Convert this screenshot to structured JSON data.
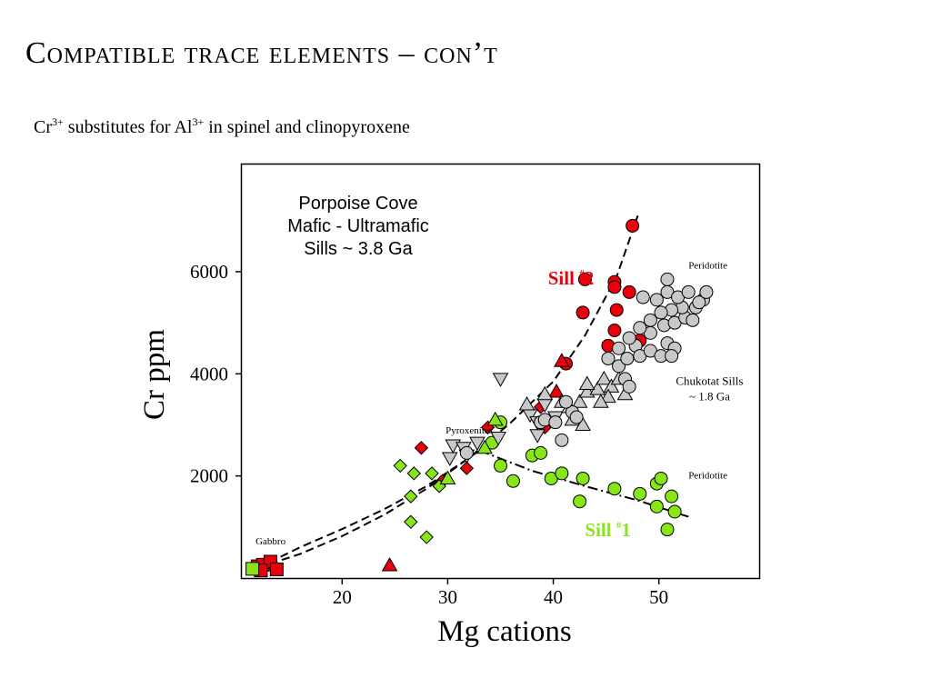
{
  "slide": {
    "title": "Compatible trace elements – con’t",
    "subtitle": {
      "part1": "Cr",
      "sup1": "3+",
      "part2": " substitutes for Al",
      "sup2": "3+",
      "part3": " in spinel and clinopyroxene"
    }
  },
  "chart_data": {
    "type": "scatter",
    "title": [
      "Porpoise Cove",
      "Mafic - Ultramafic",
      "Sills ~ 3.8 Ga"
    ],
    "xlabel": "Mg cations",
    "ylabel": "Cr ppm",
    "xlim": [
      10.5,
      59.5
    ],
    "ylim": [
      0,
      8100
    ],
    "x_ticks": [
      20,
      30,
      40,
      50
    ],
    "y_ticks": [
      2000,
      4000,
      6000
    ],
    "grid": false,
    "legend": "none",
    "colors": {
      "red": "#e8000b",
      "green": "#88e51a",
      "gray": "#c8c8c8",
      "sill1_label": "#88e51a",
      "sill2_label": "#e8000b"
    },
    "annotations": [
      {
        "text": "Sill #2",
        "at": [
          39.5,
          5750
        ],
        "color": "#e8000b",
        "bold": true,
        "size": "large"
      },
      {
        "text": "Sill #1",
        "at": [
          43,
          820
        ],
        "color": "#88e51a",
        "bold": true,
        "size": "large"
      },
      {
        "text": "Peridotite",
        "at": [
          52.8,
          6060
        ],
        "size": "small"
      },
      {
        "text": "Peridotite",
        "at": [
          52.8,
          1950
        ],
        "size": "small"
      },
      {
        "text": "Chukotat Sills",
        "at": [
          54.8,
          3780
        ],
        "size": "medium"
      },
      {
        "text": "~ 1.8 Ga",
        "at": [
          54.8,
          3480
        ],
        "size": "medium"
      },
      {
        "text": "Pyroxenites",
        "at": [
          29.8,
          2830
        ],
        "size": "small"
      },
      {
        "text": "Gabbro",
        "at": [
          11.8,
          660
        ],
        "size": "small"
      }
    ],
    "series": [
      {
        "marker": "circle",
        "color": "red",
        "points": [
          [
            47.5,
            6900
          ],
          [
            43,
            5850
          ],
          [
            45.8,
            5800
          ],
          [
            47.2,
            5600
          ],
          [
            45.8,
            5700
          ],
          [
            46,
            5250
          ],
          [
            42.8,
            5200
          ],
          [
            45.8,
            4850
          ],
          [
            45.2,
            4550
          ],
          [
            48.2,
            4650
          ],
          [
            41.2,
            4200
          ]
        ]
      },
      {
        "marker": "diamond",
        "color": "red",
        "points": [
          [
            27.5,
            2550
          ],
          [
            31.8,
            2150
          ],
          [
            33.8,
            2950
          ],
          [
            38.8,
            3350
          ],
          [
            39.2,
            2950
          ],
          [
            29.5,
            1900
          ]
        ]
      },
      {
        "marker": "triangle",
        "color": "red",
        "points": [
          [
            24.5,
            250
          ],
          [
            40.8,
            4250
          ],
          [
            40.3,
            3650
          ]
        ]
      },
      {
        "marker": "square",
        "color": "red",
        "points": [
          [
            12,
            230
          ],
          [
            12.5,
            260
          ],
          [
            13.2,
            320
          ],
          [
            12.3,
            150
          ],
          [
            13.8,
            170
          ]
        ]
      },
      {
        "marker": "circle",
        "color": "green",
        "points": [
          [
            35,
            3050
          ],
          [
            34.2,
            2650
          ],
          [
            38,
            2400
          ],
          [
            38.8,
            2450
          ],
          [
            35,
            2200
          ],
          [
            36.2,
            1900
          ],
          [
            39.8,
            1950
          ],
          [
            40.8,
            2050
          ],
          [
            42.8,
            1950
          ],
          [
            45.8,
            1750
          ],
          [
            49.8,
            1850
          ],
          [
            50.2,
            1950
          ],
          [
            48.2,
            1650
          ],
          [
            51.2,
            1600
          ],
          [
            42.5,
            1500
          ],
          [
            49.8,
            1400
          ],
          [
            51.5,
            1300
          ],
          [
            50.8,
            950
          ]
        ]
      },
      {
        "marker": "diamond",
        "color": "green",
        "points": [
          [
            25.5,
            2200
          ],
          [
            26.8,
            2050
          ],
          [
            28.5,
            2050
          ],
          [
            29.2,
            1800
          ],
          [
            26.5,
            1600
          ],
          [
            26.5,
            1100
          ],
          [
            28,
            800
          ]
        ]
      },
      {
        "marker": "triangle",
        "color": "green",
        "points": [
          [
            33.5,
            2550
          ],
          [
            34.5,
            3100
          ],
          [
            30,
            1950
          ]
        ]
      },
      {
        "marker": "square",
        "color": "green",
        "points": [
          [
            11.5,
            180
          ]
        ]
      },
      {
        "marker": "triangle-down",
        "color": "gray",
        "points": [
          [
            35,
            3900
          ],
          [
            30.5,
            2600
          ],
          [
            31.5,
            2550
          ],
          [
            30.2,
            2350
          ],
          [
            31.8,
            2400
          ],
          [
            32.8,
            2650
          ],
          [
            34.8,
            2750
          ],
          [
            37.8,
            3200
          ],
          [
            38.5,
            3050
          ],
          [
            39.2,
            3400
          ],
          [
            40.2,
            3150
          ],
          [
            38.5,
            2800
          ]
        ]
      },
      {
        "marker": "triangle",
        "color": "gray",
        "points": [
          [
            37.5,
            3400
          ],
          [
            39.2,
            3600
          ],
          [
            40.8,
            3450
          ],
          [
            41.8,
            3100
          ],
          [
            42.5,
            3450
          ],
          [
            43.2,
            3650
          ],
          [
            44.2,
            3700
          ],
          [
            44.8,
            3900
          ],
          [
            45.5,
            3750
          ],
          [
            46.2,
            3900
          ],
          [
            42.8,
            3000
          ],
          [
            41.5,
            3350
          ],
          [
            43.2,
            3800
          ],
          [
            45.2,
            3550
          ],
          [
            46.8,
            3600
          ],
          [
            44.5,
            3450
          ]
        ]
      },
      {
        "marker": "circle",
        "color": "gray",
        "points": [
          [
            45.2,
            4300
          ],
          [
            46.2,
            4150
          ],
          [
            47,
            4300
          ],
          [
            47.8,
            4550
          ],
          [
            48.2,
            4350
          ],
          [
            49.2,
            4450
          ],
          [
            50.2,
            4350
          ],
          [
            50.8,
            4600
          ],
          [
            51.5,
            4500
          ],
          [
            49.2,
            4800
          ],
          [
            50.5,
            4950
          ],
          [
            51.5,
            5000
          ],
          [
            52.5,
            5100
          ],
          [
            53.5,
            5300
          ],
          [
            54.2,
            5450
          ],
          [
            53.2,
            5050
          ],
          [
            52.2,
            5300
          ],
          [
            51.2,
            5250
          ],
          [
            50.2,
            5200
          ],
          [
            49.8,
            5450
          ],
          [
            50.8,
            5600
          ],
          [
            51.8,
            5500
          ],
          [
            52.8,
            5600
          ],
          [
            53.8,
            5400
          ],
          [
            54.5,
            5600
          ],
          [
            49.2,
            5050
          ],
          [
            48.5,
            5500
          ],
          [
            48.2,
            4900
          ],
          [
            47.2,
            4700
          ],
          [
            46.2,
            4500
          ],
          [
            46.8,
            3900
          ],
          [
            47.2,
            3750
          ],
          [
            41.8,
            3250
          ],
          [
            40.8,
            2700
          ],
          [
            42.2,
            3150
          ],
          [
            38.8,
            3050
          ],
          [
            39.2,
            3100
          ],
          [
            40.2,
            3050
          ],
          [
            41.2,
            3450
          ],
          [
            31.8,
            2450
          ],
          [
            51.2,
            4350
          ],
          [
            50.8,
            5850
          ]
        ]
      }
    ],
    "curves": [
      {
        "style": "dashed",
        "points": [
          [
            12,
            200
          ],
          [
            16,
            600
          ],
          [
            20,
            960
          ],
          [
            24,
            1350
          ],
          [
            28,
            1800
          ],
          [
            32,
            2350
          ],
          [
            36,
            3050
          ],
          [
            40,
            3850
          ],
          [
            43,
            4750
          ],
          [
            46,
            5900
          ],
          [
            48,
            7100
          ]
        ]
      },
      {
        "style": "dashed",
        "points": [
          [
            12,
            200
          ],
          [
            16,
            470
          ],
          [
            20,
            820
          ],
          [
            24,
            1240
          ],
          [
            28,
            1750
          ],
          [
            32,
            2350
          ],
          [
            35,
            2800
          ]
        ]
      },
      {
        "style": "dash-dot",
        "points": [
          [
            33,
            2500
          ],
          [
            38,
            2100
          ],
          [
            43,
            1800
          ],
          [
            48,
            1520
          ],
          [
            52.8,
            1200
          ]
        ]
      }
    ]
  }
}
